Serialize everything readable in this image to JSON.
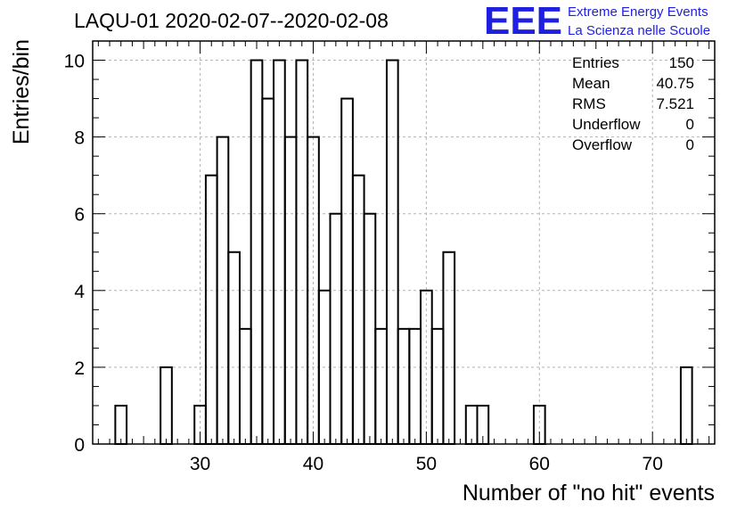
{
  "chart_data": {
    "type": "bar",
    "title": "LAQU-01 2020-02-07--2020-02-08",
    "xlabel": "Number of \"no hit\" events",
    "ylabel": "Entries/bin",
    "xlim": [
      20.5,
      75.5
    ],
    "ylim": [
      0,
      10.5
    ],
    "x_ticks": [
      30,
      40,
      50,
      60,
      70
    ],
    "y_ticks": [
      0,
      2,
      4,
      6,
      8,
      10
    ],
    "grid": true,
    "bins": [
      {
        "x": 23,
        "value": 1
      },
      {
        "x": 27,
        "value": 2
      },
      {
        "x": 30,
        "value": 1
      },
      {
        "x": 31,
        "value": 7
      },
      {
        "x": 32,
        "value": 8
      },
      {
        "x": 33,
        "value": 5
      },
      {
        "x": 34,
        "value": 3
      },
      {
        "x": 35,
        "value": 10
      },
      {
        "x": 36,
        "value": 9
      },
      {
        "x": 37,
        "value": 10
      },
      {
        "x": 38,
        "value": 8
      },
      {
        "x": 39,
        "value": 10
      },
      {
        "x": 40,
        "value": 8
      },
      {
        "x": 41,
        "value": 4
      },
      {
        "x": 42,
        "value": 6
      },
      {
        "x": 43,
        "value": 9
      },
      {
        "x": 44,
        "value": 7
      },
      {
        "x": 45,
        "value": 6
      },
      {
        "x": 46,
        "value": 3
      },
      {
        "x": 47,
        "value": 10
      },
      {
        "x": 48,
        "value": 3
      },
      {
        "x": 49,
        "value": 3
      },
      {
        "x": 50,
        "value": 4
      },
      {
        "x": 51,
        "value": 3
      },
      {
        "x": 52,
        "value": 5
      },
      {
        "x": 54,
        "value": 1
      },
      {
        "x": 55,
        "value": 1
      },
      {
        "x": 60,
        "value": 1
      },
      {
        "x": 73,
        "value": 2
      }
    ],
    "stats": [
      {
        "label": "Entries",
        "value": "150"
      },
      {
        "label": "Mean",
        "value": "40.75"
      },
      {
        "label": "RMS",
        "value": "7.521"
      },
      {
        "label": "Underflow",
        "value": "0"
      },
      {
        "label": "Overflow",
        "value": "0"
      }
    ]
  },
  "logo": {
    "mark": "EEE",
    "line1": "Extreme Energy Events",
    "line2": "La Scienza nelle Scuole",
    "color": "#1f1fe0"
  }
}
